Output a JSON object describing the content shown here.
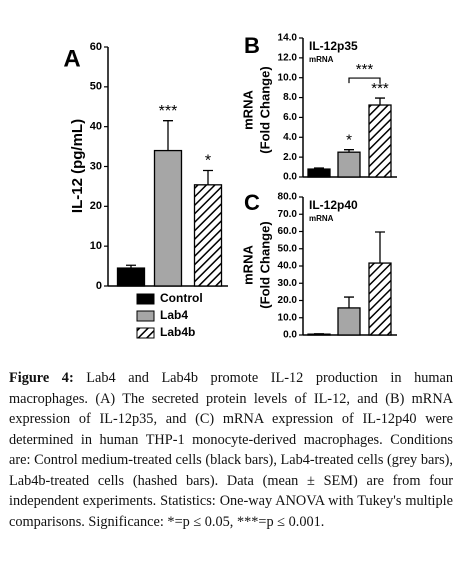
{
  "chart_data": [
    {
      "type": "bar",
      "panel": "A",
      "ylabel": [
        "IL-12 (pg/mL)"
      ],
      "ylim": [
        0,
        60
      ],
      "yticks": [
        0,
        10,
        20,
        30,
        40,
        50,
        60
      ],
      "values": [
        4.5,
        34,
        25.4
      ],
      "errors": [
        0.7,
        7.5,
        3.6
      ],
      "bar_labels": [
        null,
        "***",
        "*"
      ],
      "legend": [
        {
          "name": "Control",
          "color": "#000000"
        },
        {
          "name": "Lab4",
          "color": "#a6a6a6"
        },
        {
          "name": "Lab4b",
          "color": "#ffffff",
          "pattern": "hatch"
        }
      ]
    },
    {
      "type": "bar",
      "panel": "B",
      "title": "IL-12p35",
      "subtitle": "mRNA",
      "ylabel": [
        "mRNA",
        "(Fold Change)"
      ],
      "ylim": [
        0,
        14
      ],
      "yticks": [
        {
          "value": 0,
          "label": "0.0"
        },
        {
          "value": 2,
          "label": "2.0"
        },
        {
          "value": 4,
          "label": "4.0"
        },
        {
          "value": 6,
          "label": "6.0"
        },
        {
          "value": 8,
          "label": "8.0"
        },
        {
          "value": 10,
          "label": "10.0"
        },
        {
          "value": 12,
          "label": "12.0"
        },
        {
          "value": 14,
          "label": "14.0"
        }
      ],
      "values": [
        0.8,
        2.5,
        7.25
      ],
      "errors": [
        0.1,
        0.25,
        0.7
      ],
      "bar_labels": [
        null,
        "*",
        "***"
      ],
      "bracket_label": "***"
    },
    {
      "type": "bar",
      "panel": "C",
      "title": "IL-12p40",
      "subtitle": "mRNA",
      "ylabel": [
        "mRNA",
        "(Fold Change)"
      ],
      "ylim": [
        0,
        80
      ],
      "yticks": [
        {
          "value": 0,
          "label": "0.0"
        },
        {
          "value": 10,
          "label": "10.0"
        },
        {
          "value": 20,
          "label": "20.0"
        },
        {
          "value": 30,
          "label": "30.0"
        },
        {
          "value": 40,
          "label": "40.0"
        },
        {
          "value": 50,
          "label": "50.0"
        },
        {
          "value": 60,
          "label": "60.0"
        },
        {
          "value": 70,
          "label": "70.0"
        },
        {
          "value": 80,
          "label": "80.0"
        }
      ],
      "values": [
        0.5,
        15.7,
        41.7
      ],
      "errors": [
        0.2,
        6.3,
        18
      ]
    }
  ],
  "caption": {
    "label": "Figure 4:",
    "text": "Lab4 and Lab4b promote IL-12 production in human macrophages. (A) The secreted protein levels of IL-12, and (B) mRNA expression of IL-12p35, and (C) mRNA expression of IL-12p40 were determined in human THP-1 monocyte-derived macrophages. Conditions are: Control medium-treated cells (black bars), Lab4-treated cells (grey bars), Lab4b-treated cells (hashed bars). Data (mean ± SEM) are from four independent experiments. Statistics: One-way ANOVA with Tukey's multiple comparisons. Significance: *=p ≤ 0.05, ***=p ≤ 0.001."
  }
}
